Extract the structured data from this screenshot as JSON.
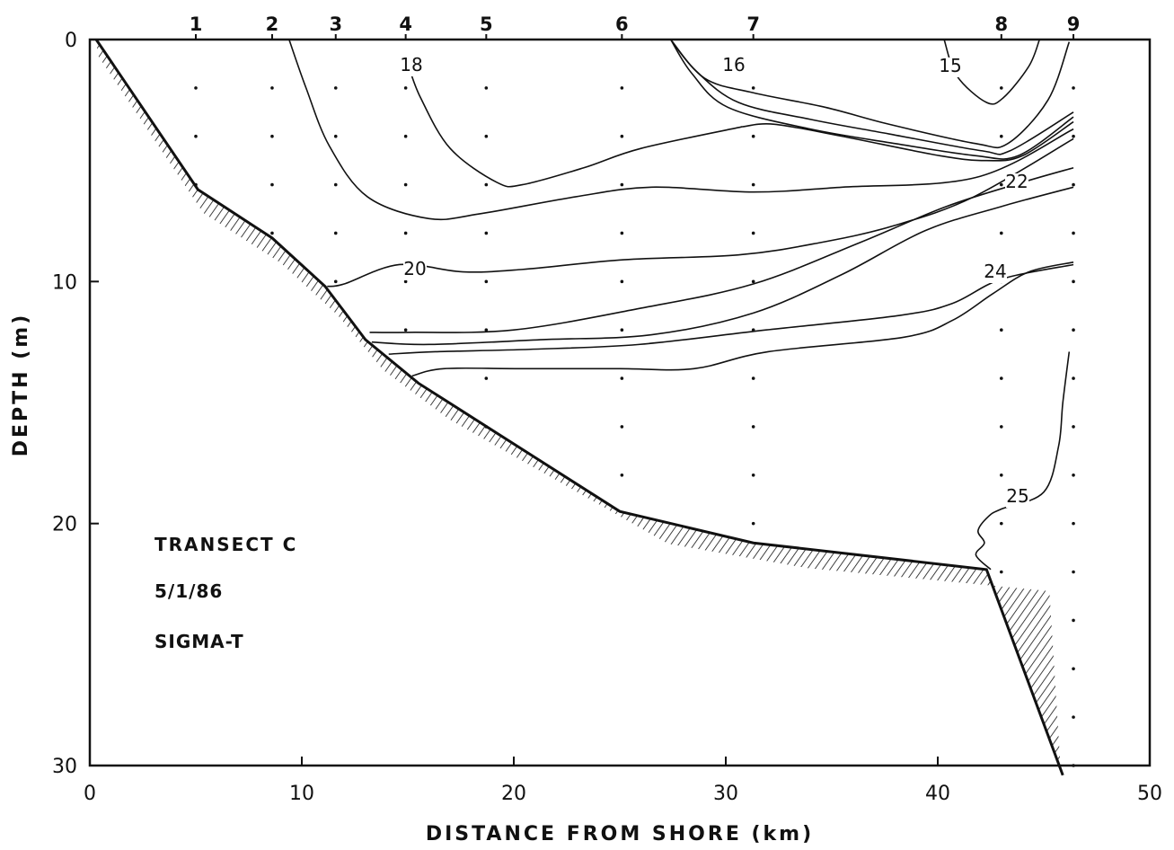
{
  "chart_data": {
    "type": "contour",
    "xlabel": "DISTANCE FROM SHORE (km)",
    "ylabel": "DEPTH (m)",
    "xlim": [
      0,
      50
    ],
    "ylim": [
      30,
      0
    ],
    "x_ticks": [
      0,
      10,
      20,
      30,
      40,
      50
    ],
    "y_ticks": [
      0,
      10,
      20,
      30
    ],
    "annotations": [
      "TRANSECT C",
      "5/1/86",
      "SIGMA-T"
    ],
    "stations": [
      {
        "label": "1",
        "x": 5.0
      },
      {
        "label": "2",
        "x": 8.6
      },
      {
        "label": "3",
        "x": 11.6
      },
      {
        "label": "4",
        "x": 14.9
      },
      {
        "label": "5",
        "x": 18.7
      },
      {
        "label": "6",
        "x": 25.1
      },
      {
        "label": "7",
        "x": 31.3
      },
      {
        "label": "8",
        "x": 43.0
      },
      {
        "label": "9",
        "x": 46.4
      }
    ],
    "sample_depths": [
      [
        2,
        4,
        6
      ],
      [
        2,
        4,
        6,
        8
      ],
      [
        2,
        4,
        6,
        8,
        10
      ],
      [
        2,
        4,
        6,
        8,
        10,
        12
      ],
      [
        2,
        4,
        6,
        8,
        10,
        12,
        14,
        16
      ],
      [
        2,
        4,
        6,
        8,
        10,
        12,
        14,
        16,
        18
      ],
      [
        2,
        4,
        6,
        8,
        10,
        12,
        14,
        16,
        18,
        20
      ],
      [
        2,
        4,
        6,
        8,
        10,
        12,
        14,
        16,
        18,
        20,
        22
      ],
      [
        2,
        4,
        6,
        8,
        10,
        12,
        14,
        16,
        18,
        20,
        22,
        24,
        26,
        28,
        30
      ]
    ],
    "bottom_profile": [
      [
        0.3,
        0
      ],
      [
        5.1,
        6.2
      ],
      [
        8.6,
        8.2
      ],
      [
        11.1,
        10.2
      ],
      [
        13.0,
        12.4
      ],
      [
        15.5,
        14.2
      ],
      [
        25.0,
        19.5
      ],
      [
        31.3,
        20.8
      ],
      [
        42.3,
        21.9
      ],
      [
        45.9,
        30.4
      ]
    ],
    "contours": [
      {
        "label": "15",
        "points": [
          [
            40.3,
            0
          ],
          [
            40.9,
            1.5
          ],
          [
            42.3,
            2.6
          ],
          [
            43.1,
            2.4
          ],
          [
            44.3,
            1.1
          ],
          [
            44.8,
            0
          ]
        ]
      },
      {
        "label": "16",
        "points": [
          [
            27.4,
            0
          ],
          [
            29.0,
            1.6
          ],
          [
            31.3,
            2.2
          ],
          [
            34.7,
            2.8
          ],
          [
            37.7,
            3.5
          ],
          [
            41.8,
            4.3
          ],
          [
            43.3,
            4.3
          ],
          [
            45.2,
            2.5
          ],
          [
            46.2,
            0.1
          ]
        ]
      },
      {
        "label": "",
        "points": [
          [
            27.4,
            0
          ],
          [
            28.6,
            1.3
          ],
          [
            30.6,
            2.6
          ],
          [
            34.0,
            3.3
          ],
          [
            37.7,
            3.9
          ],
          [
            42.1,
            4.6
          ],
          [
            43.4,
            4.6
          ],
          [
            46.4,
            3.0
          ]
        ]
      },
      {
        "label": "",
        "points": [
          [
            27.4,
            0
          ],
          [
            28.4,
            1.4
          ],
          [
            30.1,
            2.8
          ],
          [
            34.0,
            3.7
          ],
          [
            38.0,
            4.3
          ],
          [
            41.8,
            4.8
          ],
          [
            43.8,
            4.8
          ],
          [
            46.4,
            3.2
          ]
        ]
      },
      {
        "label": "",
        "points": [
          [
            30.8,
            3.6
          ],
          [
            32.3,
            3.5
          ],
          [
            35.5,
            4.0
          ],
          [
            40.1,
            4.8
          ],
          [
            42.3,
            5.0
          ],
          [
            44.0,
            4.8
          ],
          [
            46.4,
            3.4
          ]
        ]
      },
      {
        "label": "18",
        "points": [
          [
            15.0,
            1.0
          ],
          [
            15.6,
            2.4
          ],
          [
            17.0,
            4.5
          ],
          [
            19.2,
            5.9
          ],
          [
            20.4,
            6.0
          ],
          [
            23.3,
            5.3
          ],
          [
            26.0,
            4.5
          ],
          [
            30.8,
            3.6
          ]
        ]
      },
      {
        "label": "",
        "points": [
          [
            9.4,
            0
          ],
          [
            10.2,
            2.0
          ],
          [
            11.3,
            4.4
          ],
          [
            13.1,
            6.5
          ],
          [
            16.0,
            7.4
          ],
          [
            18.4,
            7.2
          ],
          [
            22.9,
            6.5
          ],
          [
            26.5,
            6.1
          ],
          [
            31.3,
            6.3
          ],
          [
            35.5,
            6.1
          ],
          [
            41.8,
            5.7
          ],
          [
            46.4,
            3.7
          ]
        ]
      },
      {
        "label": "20",
        "points": [
          [
            11.2,
            10.2
          ],
          [
            12.0,
            10.1
          ],
          [
            14.6,
            9.3
          ],
          [
            17.6,
            9.6
          ],
          [
            20.4,
            9.5
          ],
          [
            25.2,
            9.1
          ],
          [
            30.6,
            8.9
          ],
          [
            34.4,
            8.4
          ],
          [
            37.9,
            7.7
          ],
          [
            41.7,
            6.5
          ],
          [
            46.4,
            4.1
          ]
        ]
      },
      {
        "label": "22",
        "points": [
          [
            13.2,
            12.1
          ],
          [
            15.0,
            12.1
          ],
          [
            20.0,
            12.0
          ],
          [
            26.0,
            11.1
          ],
          [
            31.3,
            10.1
          ],
          [
            36.3,
            8.4
          ],
          [
            40.4,
            6.9
          ],
          [
            44.0,
            5.9
          ],
          [
            46.4,
            5.3
          ]
        ]
      },
      {
        "label": "",
        "points": [
          [
            13.3,
            12.5
          ],
          [
            16.0,
            12.6
          ],
          [
            21.4,
            12.4
          ],
          [
            26.5,
            12.2
          ],
          [
            31.3,
            11.3
          ],
          [
            35.5,
            9.7
          ],
          [
            39.4,
            7.9
          ],
          [
            43.0,
            6.9
          ],
          [
            46.4,
            6.1
          ]
        ]
      },
      {
        "label": "24",
        "points": [
          [
            14.1,
            13.0
          ],
          [
            16.3,
            12.9
          ],
          [
            20.8,
            12.8
          ],
          [
            25.9,
            12.6
          ],
          [
            31.9,
            12.0
          ],
          [
            38.2,
            11.4
          ],
          [
            40.7,
            10.9
          ],
          [
            43.0,
            9.9
          ],
          [
            46.4,
            9.3
          ]
        ]
      },
      {
        "label": "",
        "points": [
          [
            15.2,
            13.9
          ],
          [
            16.7,
            13.6
          ],
          [
            20.2,
            13.6
          ],
          [
            25.0,
            13.6
          ],
          [
            28.5,
            13.6
          ],
          [
            32.0,
            12.9
          ],
          [
            38.4,
            12.3
          ],
          [
            40.7,
            11.6
          ],
          [
            42.6,
            10.5
          ],
          [
            44.3,
            9.6
          ],
          [
            46.4,
            9.2
          ]
        ]
      },
      {
        "label": "25",
        "points": [
          [
            42.5,
            21.9
          ],
          [
            41.8,
            21.3
          ],
          [
            42.2,
            20.8
          ],
          [
            41.9,
            20.3
          ],
          [
            42.4,
            19.7
          ],
          [
            43.0,
            19.4
          ],
          [
            45.0,
            18.7
          ],
          [
            45.7,
            16.8
          ],
          [
            45.9,
            15.0
          ],
          [
            46.2,
            12.9
          ]
        ]
      }
    ]
  }
}
